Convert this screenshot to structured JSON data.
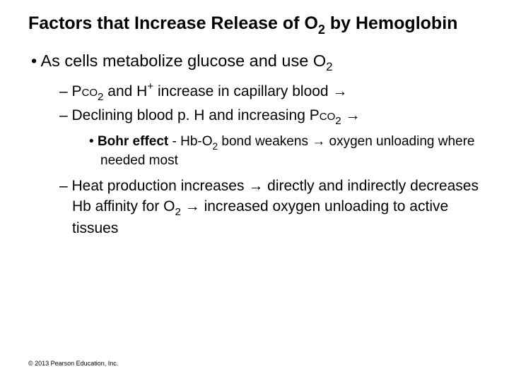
{
  "title_html": "Factors that Increase Release of O<span class='sub'>2</span> by Hemoglobin",
  "bullets": {
    "l1_a": "As cells metabolize glucose and use O<span class='sub'>2</span>",
    "l2_a": "P<span class='small-caps'>co</span><span class='sub'>2</span> and H<span class='sup'>+</span> increase in capillary blood &rarr;",
    "l2_b": "Declining blood p. H and increasing P<span class='small-caps'>co</span><span class='sub'>2</span> &rarr;",
    "l3_a": "<span class='bold'>Bohr effect</span> - Hb-O<span class='sub'>2</span> bond weakens &rarr; oxygen unloading where needed most",
    "l2_c": "Heat production increases &rarr; directly and indirectly decreases Hb affinity for O<span class='sub'>2</span> &rarr; increased oxygen unloading to active tissues"
  },
  "copyright": "© 2013 Pearson Education, Inc.",
  "colors": {
    "background": "#ffffff",
    "text": "#000000"
  }
}
